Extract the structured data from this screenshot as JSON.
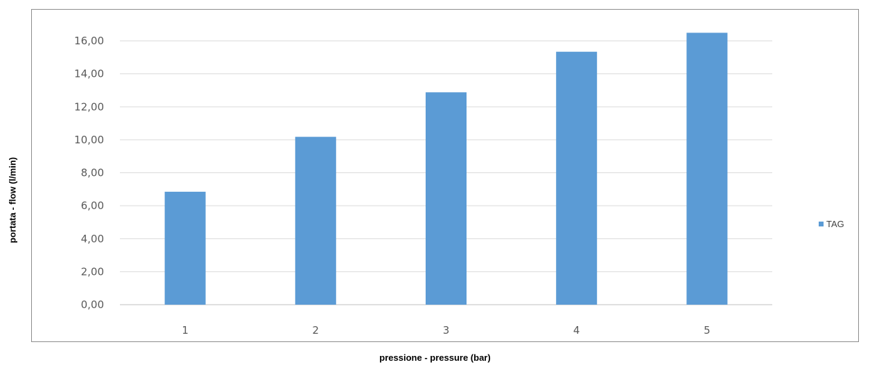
{
  "chart_data": {
    "type": "bar",
    "categories": [
      "1",
      "2",
      "3",
      "4",
      "5"
    ],
    "series": [
      {
        "name": "TAG",
        "values": [
          6.85,
          10.18,
          12.88,
          15.34,
          16.49
        ],
        "color": "#5b9bd5"
      }
    ],
    "ylim": [
      0,
      16
    ],
    "ytick_labels": [
      "0,00",
      "2,00",
      "4,00",
      "6,00",
      "8,00",
      "10,00",
      "12,00",
      "14,00",
      "16,00"
    ],
    "xlabel": "pressione - pressure  (bar)",
    "ylabel": "portata - flow (l/min)",
    "legend": {
      "position": "right",
      "label": "TAG"
    },
    "grid": true
  }
}
